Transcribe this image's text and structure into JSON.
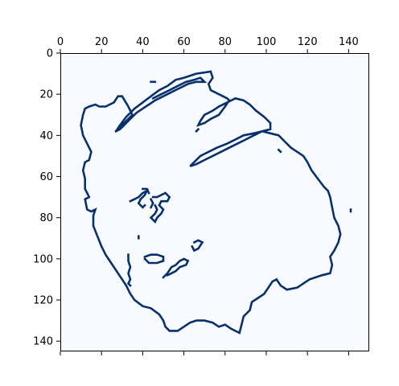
{
  "chart_data": {
    "type": "heatmap",
    "title": "",
    "xlabel": "",
    "ylabel": "",
    "x_axis_position": "top",
    "y_axis_inverted": true,
    "xlim": [
      0,
      150
    ],
    "ylim": [
      145,
      0
    ],
    "x_ticks": [
      0,
      20,
      40,
      60,
      80,
      100,
      120,
      140
    ],
    "x_tick_labels": [
      "0",
      "20",
      "40",
      "60",
      "80",
      "100",
      "120",
      "140"
    ],
    "y_ticks": [
      0,
      20,
      40,
      60,
      80,
      100,
      120,
      140
    ],
    "y_tick_labels": [
      "0",
      "20",
      "40",
      "60",
      "80",
      "100",
      "120",
      "140"
    ],
    "colormap": "Blues",
    "background_color": "#f7fbff",
    "edge_color": "#08306b",
    "grid": false,
    "legend": "none",
    "image_size": [
      145,
      150
    ],
    "edge_traces": [
      {
        "name": "outer-contour",
        "points": [
          [
            73,
            9
          ],
          [
            66,
            10
          ],
          [
            60,
            12
          ],
          [
            56,
            13
          ],
          [
            52,
            16
          ],
          [
            48,
            18
          ],
          [
            44,
            21
          ],
          [
            40,
            24
          ],
          [
            36,
            27
          ],
          [
            32,
            31
          ],
          [
            29,
            35
          ],
          [
            27,
            38
          ],
          [
            32,
            33
          ],
          [
            35,
            30
          ],
          [
            33,
            26
          ],
          [
            30,
            21
          ],
          [
            28,
            21
          ],
          [
            26,
            24
          ],
          [
            22,
            26
          ],
          [
            19,
            26
          ],
          [
            17,
            25
          ],
          [
            14,
            26
          ],
          [
            12,
            27
          ],
          [
            11,
            30
          ],
          [
            10,
            35
          ],
          [
            11,
            40
          ],
          [
            13,
            44
          ],
          [
            15,
            48
          ],
          [
            14,
            52
          ],
          [
            12,
            53
          ],
          [
            11,
            57
          ],
          [
            12,
            61
          ],
          [
            12,
            66
          ],
          [
            14,
            70
          ],
          [
            12,
            71
          ],
          [
            13,
            76
          ],
          [
            15,
            77
          ],
          [
            17,
            76
          ],
          [
            16,
            79
          ],
          [
            16,
            84
          ],
          [
            18,
            89
          ],
          [
            20,
            94
          ],
          [
            22,
            98
          ],
          [
            24,
            101
          ],
          [
            26,
            104
          ],
          [
            28,
            107
          ],
          [
            30,
            110
          ],
          [
            32,
            113
          ],
          [
            34,
            117
          ],
          [
            36,
            120
          ],
          [
            40,
            123
          ],
          [
            44,
            124
          ],
          [
            48,
            127
          ],
          [
            50,
            130
          ],
          [
            51,
            133
          ],
          [
            53,
            135
          ],
          [
            57,
            135
          ],
          [
            60,
            133
          ],
          [
            63,
            131
          ],
          [
            66,
            130
          ],
          [
            70,
            130
          ],
          [
            74,
            131
          ],
          [
            77,
            133
          ],
          [
            80,
            132
          ],
          [
            83,
            134
          ],
          [
            87,
            136
          ],
          [
            88,
            132
          ],
          [
            89,
            128
          ],
          [
            92,
            125
          ],
          [
            93,
            121
          ],
          [
            96,
            119
          ],
          [
            99,
            117
          ],
          [
            101,
            114
          ],
          [
            103,
            111
          ],
          [
            105,
            110
          ],
          [
            107,
            113
          ],
          [
            110,
            115
          ],
          [
            115,
            114
          ],
          [
            118,
            112
          ],
          [
            121,
            110
          ],
          [
            124,
            109
          ],
          [
            127,
            108
          ],
          [
            131,
            107
          ],
          [
            132,
            103
          ],
          [
            131,
            99
          ],
          [
            133,
            96
          ],
          [
            135,
            92
          ],
          [
            136,
            88
          ],
          [
            135,
            84
          ],
          [
            133,
            80
          ],
          [
            132,
            75
          ],
          [
            131,
            70
          ],
          [
            130,
            67
          ],
          [
            128,
            65
          ],
          [
            125,
            61
          ],
          [
            122,
            57
          ],
          [
            120,
            53
          ],
          [
            118,
            50
          ],
          [
            115,
            48
          ],
          [
            112,
            46
          ],
          [
            109,
            43
          ],
          [
            106,
            40
          ],
          [
            102,
            39
          ],
          [
            98,
            38
          ],
          [
            94,
            39
          ],
          [
            89,
            40
          ],
          [
            85,
            42
          ],
          [
            81,
            44
          ],
          [
            76,
            46
          ],
          [
            72,
            48
          ],
          [
            68,
            50
          ],
          [
            65,
            53
          ],
          [
            63,
            55
          ],
          [
            66,
            54
          ],
          [
            70,
            52
          ],
          [
            74,
            50
          ],
          [
            78,
            48
          ],
          [
            82,
            46
          ],
          [
            86,
            44
          ],
          [
            90,
            42
          ],
          [
            94,
            40
          ],
          [
            98,
            38
          ],
          [
            102,
            37
          ],
          [
            102,
            34
          ],
          [
            99,
            31
          ],
          [
            95,
            28
          ],
          [
            92,
            25
          ],
          [
            89,
            23
          ],
          [
            85,
            22
          ],
          [
            81,
            24
          ],
          [
            77,
            26
          ],
          [
            74,
            28
          ],
          [
            70,
            30
          ],
          [
            68,
            33
          ],
          [
            67,
            35
          ],
          [
            70,
            34
          ],
          [
            73,
            32
          ],
          [
            77,
            30
          ],
          [
            80,
            26
          ],
          [
            82,
            23
          ],
          [
            81,
            22
          ],
          [
            77,
            20
          ],
          [
            73,
            18
          ],
          [
            72,
            15
          ],
          [
            74,
            12
          ],
          [
            73,
            9
          ]
        ]
      },
      {
        "name": "leaf-upper-inner",
        "points": [
          [
            27,
            38
          ],
          [
            29,
            37
          ],
          [
            31,
            35
          ],
          [
            33,
            33
          ],
          [
            35,
            31
          ],
          [
            37,
            29
          ],
          [
            40,
            27
          ],
          [
            43,
            25
          ],
          [
            46,
            23
          ],
          [
            50,
            21
          ],
          [
            54,
            19
          ],
          [
            58,
            17
          ],
          [
            62,
            15
          ],
          [
            66,
            14
          ],
          [
            70,
            14
          ],
          [
            68,
            12
          ],
          [
            65,
            13
          ],
          [
            61,
            14
          ],
          [
            57,
            16
          ],
          [
            53,
            18
          ],
          [
            49,
            20
          ],
          [
            45,
            22
          ]
        ]
      },
      {
        "name": "small-blob-upper",
        "points": [
          [
            44,
            14
          ],
          [
            46,
            14
          ]
        ]
      },
      {
        "name": "hatch-upper-1",
        "points": [
          [
            66,
            38
          ],
          [
            67,
            37
          ]
        ]
      },
      {
        "name": "hatch-upper-2",
        "points": [
          [
            107,
            48
          ],
          [
            106,
            47
          ]
        ]
      },
      {
        "name": "center-blob-1",
        "points": [
          [
            34,
            72
          ],
          [
            36,
            71
          ],
          [
            38,
            70
          ],
          [
            40,
            68
          ],
          [
            42,
            67
          ],
          [
            41,
            69
          ],
          [
            39,
            71
          ],
          [
            38,
            73
          ],
          [
            40,
            75
          ],
          [
            41,
            74
          ]
        ]
      },
      {
        "name": "center-blob-2",
        "points": [
          [
            40,
            66
          ],
          [
            42,
            66
          ],
          [
            43,
            68
          ]
        ]
      },
      {
        "name": "center-blob-3",
        "points": [
          [
            45,
            70
          ],
          [
            47,
            70
          ],
          [
            49,
            69
          ],
          [
            51,
            68
          ],
          [
            53,
            70
          ],
          [
            52,
            72
          ],
          [
            49,
            72
          ],
          [
            48,
            74
          ],
          [
            50,
            76
          ],
          [
            49,
            78
          ],
          [
            47,
            80
          ],
          [
            46,
            82
          ],
          [
            44,
            80
          ],
          [
            46,
            78
          ],
          [
            47,
            76
          ],
          [
            46,
            74
          ]
        ]
      },
      {
        "name": "center-blob-4",
        "points": [
          [
            44,
            71
          ],
          [
            45,
            73
          ],
          [
            44,
            75
          ]
        ]
      },
      {
        "name": "dot-center",
        "points": [
          [
            38,
            89
          ],
          [
            38,
            90
          ]
        ]
      },
      {
        "name": "lower-vertical",
        "points": [
          [
            33,
            98
          ],
          [
            33,
            101
          ],
          [
            34,
            104
          ],
          [
            33,
            107
          ],
          [
            34,
            110
          ],
          [
            33,
            112
          ],
          [
            34,
            113
          ]
        ]
      },
      {
        "name": "lower-loop",
        "points": [
          [
            41,
            99
          ],
          [
            44,
            98
          ],
          [
            47,
            98
          ],
          [
            50,
            99
          ],
          [
            50,
            101
          ],
          [
            47,
            102
          ],
          [
            43,
            102
          ],
          [
            41,
            100
          ]
        ]
      },
      {
        "name": "lower-right-stroke",
        "points": [
          [
            50,
            109
          ],
          [
            52,
            107
          ],
          [
            54,
            104
          ],
          [
            56,
            103
          ],
          [
            58,
            101
          ],
          [
            60,
            100
          ],
          [
            62,
            101
          ],
          [
            61,
            103
          ],
          [
            58,
            104
          ],
          [
            56,
            106
          ],
          [
            54,
            107
          ],
          [
            52,
            108
          ]
        ]
      },
      {
        "name": "small-arc",
        "points": [
          [
            65,
            92
          ],
          [
            67,
            91
          ],
          [
            69,
            92
          ],
          [
            67,
            95
          ],
          [
            65,
            96
          ],
          [
            64,
            94
          ]
        ]
      },
      {
        "name": "right-dot",
        "points": [
          [
            141,
            76
          ],
          [
            141,
            77
          ]
        ]
      }
    ]
  }
}
